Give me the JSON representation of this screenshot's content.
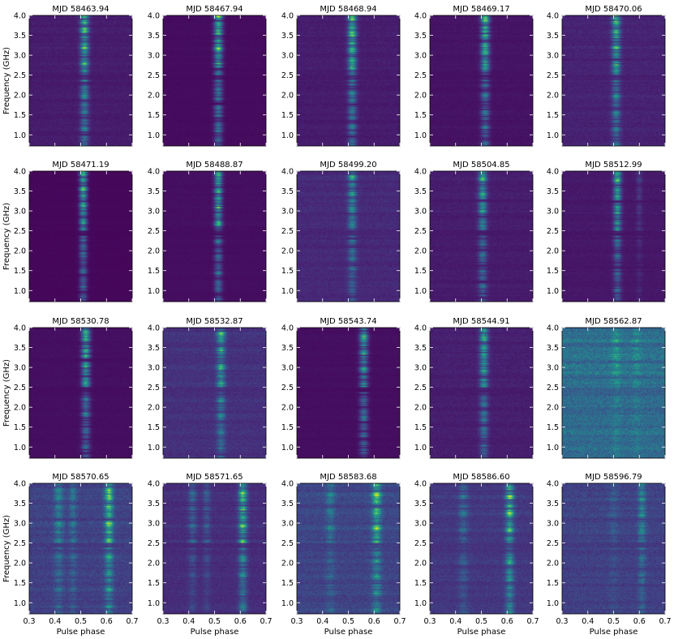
{
  "chart_data": {
    "type": "heatmap",
    "layout": "4x5 grid of dynamic spectra",
    "xlabel": "Pulse phase",
    "ylabel": "Frequency (GHz)",
    "xlim": [
      0.3,
      0.7
    ],
    "ylim": [
      0.72,
      4.0
    ],
    "xticks": [
      "0.3",
      "0.4",
      "0.5",
      "0.6",
      "0.7"
    ],
    "yticks": [
      "1.0",
      "1.5",
      "2.0",
      "2.5",
      "3.0",
      "3.5",
      "4.0"
    ],
    "colormap": "viridis",
    "panels": [
      {
        "title": "MJD 58463.94",
        "components": [
          {
            "phase": 0.515,
            "width": 0.011,
            "strength": 0.9
          }
        ],
        "background": 0.12
      },
      {
        "title": "MJD 58467.94",
        "components": [
          {
            "phase": 0.515,
            "width": 0.011,
            "strength": 0.95
          }
        ],
        "background": 0.05
      },
      {
        "title": "MJD 58468.94",
        "components": [
          {
            "phase": 0.515,
            "width": 0.011,
            "strength": 0.9
          }
        ],
        "background": 0.12
      },
      {
        "title": "MJD 58469.17",
        "components": [
          {
            "phase": 0.515,
            "width": 0.011,
            "strength": 0.9
          }
        ],
        "background": 0.08
      },
      {
        "title": "MJD 58470.06",
        "components": [
          {
            "phase": 0.51,
            "width": 0.011,
            "strength": 0.85
          }
        ],
        "background": 0.15
      },
      {
        "title": "MJD 58471.19",
        "components": [
          {
            "phase": 0.51,
            "width": 0.01,
            "strength": 0.85
          }
        ],
        "background": 0.03
      },
      {
        "title": "MJD 58488.87",
        "components": [
          {
            "phase": 0.515,
            "width": 0.01,
            "strength": 0.85
          }
        ],
        "background": 0.06
      },
      {
        "title": "MJD 58499.20",
        "components": [
          {
            "phase": 0.515,
            "width": 0.011,
            "strength": 0.6
          }
        ],
        "background": 0.18
      },
      {
        "title": "MJD 58504.85",
        "components": [
          {
            "phase": 0.505,
            "width": 0.011,
            "strength": 0.7
          }
        ],
        "background": 0.12
      },
      {
        "title": "MJD 58512.99",
        "components": [
          {
            "phase": 0.515,
            "width": 0.01,
            "strength": 0.8
          },
          {
            "phase": 0.6,
            "width": 0.008,
            "strength": 0.15
          }
        ],
        "background": 0.1
      },
      {
        "title": "MJD 58530.78",
        "components": [
          {
            "phase": 0.52,
            "width": 0.011,
            "strength": 0.85
          }
        ],
        "background": 0.06
      },
      {
        "title": "MJD 58532.87",
        "components": [
          {
            "phase": 0.525,
            "width": 0.011,
            "strength": 0.7
          }
        ],
        "background": 0.22
      },
      {
        "title": "MJD 58543.74",
        "components": [
          {
            "phase": 0.56,
            "width": 0.011,
            "strength": 0.8
          }
        ],
        "background": 0.06
      },
      {
        "title": "MJD 58544.91",
        "components": [
          {
            "phase": 0.51,
            "width": 0.011,
            "strength": 0.75
          }
        ],
        "background": 0.13
      },
      {
        "title": "MJD 58562.87",
        "components": [
          {
            "phase": 0.51,
            "width": 0.012,
            "strength": 0.25
          },
          {
            "phase": 0.59,
            "width": 0.01,
            "strength": 0.18
          }
        ],
        "background": 0.55
      },
      {
        "title": "MJD 58570.65",
        "components": [
          {
            "phase": 0.415,
            "width": 0.012,
            "strength": 0.4
          },
          {
            "phase": 0.47,
            "width": 0.01,
            "strength": 0.3
          },
          {
            "phase": 0.61,
            "width": 0.011,
            "strength": 0.85
          }
        ],
        "background": 0.3
      },
      {
        "title": "MJD 58571.65",
        "components": [
          {
            "phase": 0.415,
            "width": 0.011,
            "strength": 0.3
          },
          {
            "phase": 0.47,
            "width": 0.01,
            "strength": 0.25
          },
          {
            "phase": 0.61,
            "width": 0.011,
            "strength": 0.85
          }
        ],
        "background": 0.2
      },
      {
        "title": "MJD 58583.68",
        "components": [
          {
            "phase": 0.43,
            "width": 0.012,
            "strength": 0.3
          },
          {
            "phase": 0.61,
            "width": 0.012,
            "strength": 0.75
          }
        ],
        "background": 0.32
      },
      {
        "title": "MJD 58586.60",
        "components": [
          {
            "phase": 0.43,
            "width": 0.012,
            "strength": 0.3
          },
          {
            "phase": 0.61,
            "width": 0.011,
            "strength": 0.85
          }
        ],
        "background": 0.25
      },
      {
        "title": "MJD 58596.79",
        "components": [
          {
            "phase": 0.5,
            "width": 0.013,
            "strength": 0.15
          },
          {
            "phase": 0.61,
            "width": 0.01,
            "strength": 0.45
          }
        ],
        "background": 0.3
      }
    ]
  }
}
